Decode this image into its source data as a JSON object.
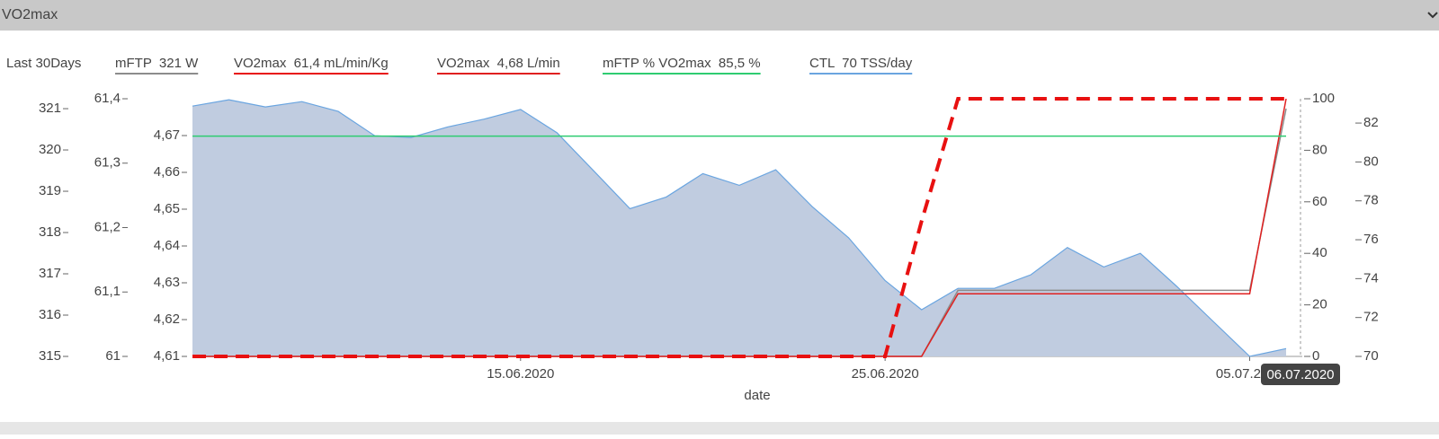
{
  "panel": {
    "title": "VO2max",
    "period": "Last 30Days",
    "cursor_label": "06.07.2020"
  },
  "chart_data": {
    "type": "line",
    "x_label": "date",
    "categories": [
      null,
      null,
      null,
      null,
      null,
      null,
      null,
      null,
      null,
      "15.06.2020",
      null,
      null,
      null,
      null,
      null,
      null,
      null,
      null,
      null,
      "25.06.2020",
      null,
      null,
      null,
      null,
      null,
      null,
      null,
      null,
      null,
      "05.07.2020",
      null
    ],
    "axes": [
      {
        "ylim": [
          315,
          321.24
        ],
        "yticks": [
          315,
          316,
          317,
          318,
          319,
          320,
          321
        ]
      },
      {
        "ylim": [
          61,
          61.4
        ],
        "yticks": [
          61,
          {
            "value": 61.1,
            "label": "61,1"
          },
          {
            "value": 61.2,
            "label": "61,2"
          },
          {
            "value": 61.3,
            "label": "61,3"
          },
          {
            "value": 61.4,
            "label": "61,4"
          }
        ]
      },
      {
        "ylim": [
          4.61,
          4.68
        ],
        "yticks": [
          {
            "value": 4.61,
            "label": "4,61"
          },
          {
            "value": 4.62,
            "label": "4,62"
          },
          {
            "value": 4.63,
            "label": "4,63"
          },
          {
            "value": 4.64,
            "label": "4,64"
          },
          {
            "value": 4.65,
            "label": "4,65"
          },
          {
            "value": 4.66,
            "label": "4,66"
          },
          {
            "value": 4.67,
            "label": "4,67"
          }
        ]
      },
      {
        "ylim": [
          0,
          100
        ],
        "yticks": [
          0,
          20,
          40,
          60,
          80,
          100
        ]
      },
      {
        "ylim": [
          70,
          83.25
        ],
        "yticks": [
          70,
          72,
          74,
          76,
          78,
          80,
          82
        ]
      }
    ],
    "series": [
      {
        "name": "mFTP  321 W",
        "color": "#8c8c8c",
        "axis": 0,
        "kind": "line",
        "values": [
          315,
          315,
          315,
          315,
          315,
          315,
          315,
          315,
          315,
          315,
          315,
          315,
          315,
          315,
          315,
          315,
          315,
          315,
          315,
          315,
          315,
          316.6,
          316.6,
          316.6,
          316.6,
          316.6,
          316.6,
          316.6,
          316.6,
          316.6,
          321
        ]
      },
      {
        "name": "VO2max  61,4 mL/min/Kg",
        "color": "#e81010",
        "axis": 1,
        "kind": "line",
        "dashed": true,
        "values": [
          61,
          61,
          61,
          61,
          61,
          61,
          61,
          61,
          61,
          61,
          61,
          61,
          61,
          61,
          61,
          61,
          61,
          61,
          61,
          61,
          61.21,
          61.4,
          61.4,
          61.4,
          61.4,
          61.4,
          61.4,
          61.4,
          61.4,
          61.4,
          61.4
        ]
      },
      {
        "name": "VO2max  4,68 L/min",
        "color": "#e02020",
        "axis": 2,
        "kind": "line",
        "values": [
          4.61,
          4.61,
          4.61,
          4.61,
          4.61,
          4.61,
          4.61,
          4.61,
          4.61,
          4.61,
          4.61,
          4.61,
          4.61,
          4.61,
          4.61,
          4.61,
          4.61,
          4.61,
          4.61,
          4.61,
          4.61,
          4.627,
          4.627,
          4.627,
          4.627,
          4.627,
          4.627,
          4.627,
          4.627,
          4.627,
          4.68
        ]
      },
      {
        "name": "mFTP % VO2max  85,5 %",
        "color": "#2ecc71",
        "axis": 3,
        "kind": "line",
        "values": [
          85.5,
          85.5,
          85.5,
          85.5,
          85.5,
          85.5,
          85.5,
          85.5,
          85.5,
          85.5,
          85.5,
          85.5,
          85.5,
          85.5,
          85.5,
          85.5,
          85.5,
          85.5,
          85.5,
          85.5,
          85.5,
          85.5,
          85.5,
          85.5,
          85.5,
          85.5,
          85.5,
          85.5,
          85.5,
          85.5,
          85.5
        ]
      },
      {
        "name": "CTL  70 TSS/day",
        "color": "#6aa5e0",
        "fill": "#c0cce0",
        "axis": 4,
        "kind": "area",
        "values": [
          82.87,
          83.2,
          82.83,
          83.1,
          82.6,
          81.35,
          81.26,
          81.8,
          82.2,
          82.7,
          81.5,
          79.55,
          77.6,
          78.2,
          79.4,
          78.8,
          79.6,
          77.7,
          76.1,
          73.9,
          72.4,
          73.5,
          73.5,
          74.2,
          75.6,
          74.6,
          75.3,
          73.6,
          71.8,
          70,
          70.4
        ]
      }
    ]
  }
}
